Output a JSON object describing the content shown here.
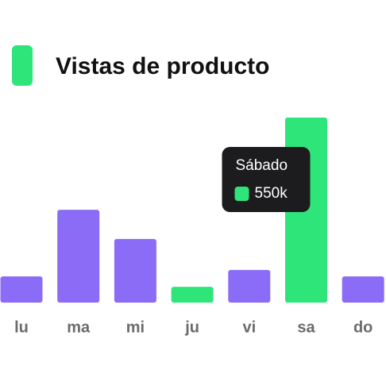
{
  "chart_data": {
    "type": "bar",
    "title": "Vistas de producto",
    "title_color": "#2ee57a",
    "categories": [
      "lu",
      "ma",
      "mi",
      "ju",
      "vi",
      "sa",
      "do"
    ],
    "values": [
      78000,
      276000,
      189000,
      47000,
      97000,
      550000,
      78000
    ],
    "value_labels": [
      null,
      null,
      null,
      null,
      null,
      "550k",
      null
    ],
    "colors": [
      "#8b6cf6",
      "#8b6cf6",
      "#8b6cf6",
      "#2ee57a",
      "#8b6cf6",
      "#2ee57a",
      "#8b6cf6"
    ],
    "tooltip_title": "Sábado"
  }
}
